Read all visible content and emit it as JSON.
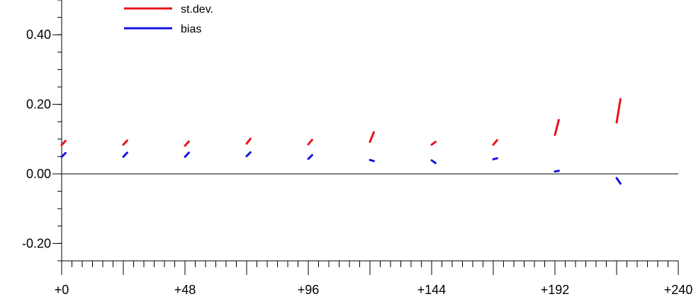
{
  "chart_data": {
    "type": "line",
    "title": "",
    "xlabel": "",
    "ylabel": "",
    "xlim": [
      0,
      240
    ],
    "ylim": [
      -0.25,
      0.5
    ],
    "x_ticks": [
      {
        "value": 0,
        "label": "+0"
      },
      {
        "value": 48,
        "label": "+48"
      },
      {
        "value": 96,
        "label": "+96"
      },
      {
        "value": 144,
        "label": "+144"
      },
      {
        "value": 192,
        "label": "+192"
      },
      {
        "value": 240,
        "label": "+240"
      }
    ],
    "x_major_step": 24,
    "x_minor_step": 4,
    "y_ticks": [
      {
        "value": -0.2,
        "label": "-0.20"
      },
      {
        "value": 0.0,
        "label": "0.00"
      },
      {
        "value": 0.2,
        "label": "0.20"
      },
      {
        "value": 0.4,
        "label": "0.40"
      }
    ],
    "y_minor_step": 0.05,
    "zero_line": true,
    "legend": {
      "placement": "top-left"
    },
    "series": [
      {
        "name": "st.dev.",
        "color": "#e8141c",
        "segments": [
          [
            [
              0,
              0.083
            ],
            [
              1.5,
              0.095
            ]
          ],
          [
            [
              24,
              0.084
            ],
            [
              25.5,
              0.096
            ]
          ],
          [
            [
              48,
              0.081
            ],
            [
              49.5,
              0.093
            ]
          ],
          [
            [
              72,
              0.087
            ],
            [
              73.5,
              0.101
            ]
          ],
          [
            [
              96,
              0.085
            ],
            [
              97.5,
              0.098
            ]
          ],
          [
            [
              120,
              0.092
            ],
            [
              121.5,
              0.12
            ]
          ],
          [
            [
              144,
              0.084
            ],
            [
              145.5,
              0.092
            ]
          ],
          [
            [
              168,
              0.084
            ],
            [
              169.5,
              0.097
            ]
          ],
          [
            [
              192,
              0.112
            ],
            [
              193.5,
              0.155
            ]
          ],
          [
            [
              216,
              0.148
            ],
            [
              217.5,
              0.215
            ]
          ]
        ]
      },
      {
        "name": "bias",
        "color": "#1414e6",
        "segments": [
          [
            [
              0,
              0.049
            ],
            [
              1.5,
              0.06
            ]
          ],
          [
            [
              24,
              0.049
            ],
            [
              25.5,
              0.061
            ]
          ],
          [
            [
              48,
              0.049
            ],
            [
              49.5,
              0.061
            ]
          ],
          [
            [
              72,
              0.051
            ],
            [
              73.5,
              0.062
            ]
          ],
          [
            [
              96,
              0.043
            ],
            [
              97.5,
              0.054
            ]
          ],
          [
            [
              120,
              0.04
            ],
            [
              121.5,
              0.037
            ]
          ],
          [
            [
              144,
              0.039
            ],
            [
              145.5,
              0.031
            ]
          ],
          [
            [
              168,
              0.042
            ],
            [
              169.5,
              0.045
            ]
          ],
          [
            [
              192,
              0.007
            ],
            [
              193.5,
              0.009
            ]
          ],
          [
            [
              216,
              -0.012
            ],
            [
              217.5,
              -0.028
            ]
          ]
        ]
      }
    ]
  }
}
